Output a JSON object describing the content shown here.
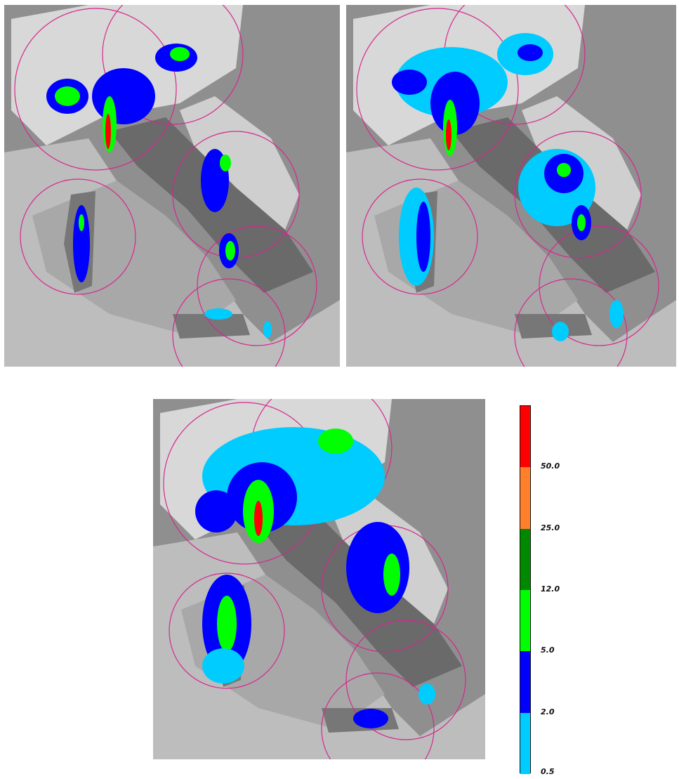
{
  "maps": [
    {
      "id": "top-left"
    },
    {
      "id": "top-right"
    },
    {
      "id": "bottom"
    }
  ],
  "legend": {
    "segments": [
      {
        "from": 0.5,
        "to": 2.0,
        "color": "#00ccff"
      },
      {
        "from": 2.0,
        "to": 5.0,
        "color": "#0000ff"
      },
      {
        "from": 5.0,
        "to": 12.0,
        "color": "#00ff00"
      },
      {
        "from": 12.0,
        "to": 25.0,
        "color": "#008800"
      },
      {
        "from": 25.0,
        "to": 50.0,
        "color": "#ff7f2a"
      },
      {
        "from": 50.0,
        "to": null,
        "color": "#ff0000"
      }
    ],
    "labels": [
      "0.5",
      "2.0",
      "5.0",
      "12.0",
      "25.0",
      "50.0"
    ]
  },
  "colors": {
    "radar_range_circle": "#d6278f",
    "sea_light": "#cfcfcf",
    "sea_dark": "#a9a9a9",
    "land_dark": "#6e6e6e",
    "mountains": "#d9d9d9"
  }
}
